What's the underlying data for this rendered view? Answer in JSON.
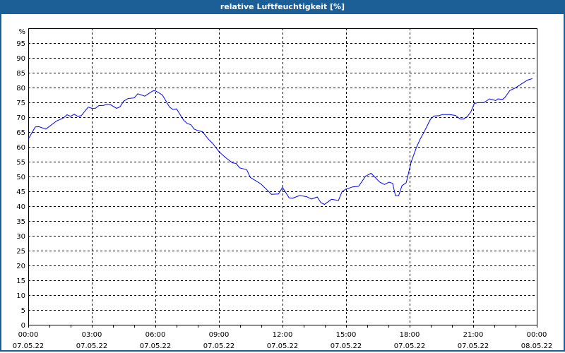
{
  "window": {
    "title": "relative Luftfeuchtigkeit [%]"
  },
  "chart_data": {
    "type": "line",
    "title": "relative Luftfeuchtigkeit [%]",
    "ylabel": "%",
    "xlabel": "",
    "ylim": [
      0,
      100
    ],
    "xlim_hours": [
      0,
      24
    ],
    "grid": true,
    "yticks": [
      "0",
      "5",
      "10",
      "15",
      "20",
      "25",
      "30",
      "35",
      "40",
      "45",
      "50",
      "55",
      "60",
      "65",
      "70",
      "75",
      "80",
      "85",
      "90",
      "95"
    ],
    "xticks": [
      {
        "time": "00:00",
        "date": "07.05.22"
      },
      {
        "time": "03:00",
        "date": "07.05.22"
      },
      {
        "time": "06:00",
        "date": "07.05.22"
      },
      {
        "time": "09:00",
        "date": "07.05.22"
      },
      {
        "time": "12:00",
        "date": "07.05.22"
      },
      {
        "time": "15:00",
        "date": "07.05.22"
      },
      {
        "time": "18:00",
        "date": "07.05.22"
      },
      {
        "time": "21:00",
        "date": "07.05.22"
      },
      {
        "time": "00:00",
        "date": "08.05.22"
      }
    ],
    "series": [
      {
        "name": "relative Luftfeuchtigkeit",
        "color": "#0000ff",
        "x_hours": [
          0,
          0.33,
          0.5,
          0.83,
          1.33,
          1.67,
          1.83,
          2,
          2.17,
          2.33,
          2.5,
          2.83,
          3,
          3.17,
          3.33,
          3.56,
          3.72,
          3.89,
          4.17,
          4.33,
          4.5,
          4.72,
          5,
          5.17,
          5.5,
          5.67,
          5.89,
          6,
          6.33,
          6.67,
          6.83,
          7,
          7.33,
          7.5,
          7.67,
          7.83,
          8,
          8.22,
          8.5,
          8.7,
          9,
          9.31,
          9.64,
          9.81,
          9.98,
          10.31,
          10.48,
          10.98,
          11.48,
          11.81,
          12,
          12.31,
          12.48,
          12.81,
          13.14,
          13.37,
          13.64,
          13.81,
          13.98,
          14.31,
          14.64,
          14.81,
          14.98,
          15.31,
          15.59,
          15.92,
          16.18,
          16.59,
          16.81,
          17.03,
          17.2,
          17.33,
          17.48,
          17.64,
          17.84,
          18.07,
          18.31,
          18.49,
          18.66,
          18.99,
          19.16,
          19.38,
          19.55,
          19.88,
          20.16,
          20.39,
          20.55,
          20.72,
          20.89,
          21.05,
          21.22,
          21.5,
          21.78,
          22.06,
          22.17,
          22.39,
          22.5,
          22.73,
          23,
          23.23,
          23.56,
          23.79
        ],
        "values": [
          62.6,
          66.7,
          66.8,
          66,
          68.7,
          69.8,
          70.8,
          70.3,
          71,
          70.3,
          70.5,
          73.4,
          73,
          73,
          73.9,
          74,
          74.4,
          74.2,
          73,
          73.5,
          75.4,
          76.3,
          76.5,
          77.9,
          77.1,
          77.9,
          78.9,
          78.9,
          77.5,
          73.4,
          72.6,
          72.8,
          69,
          67.9,
          67.5,
          66,
          65.5,
          65.1,
          62.6,
          61.2,
          58.4,
          56.4,
          54.6,
          54.4,
          52.9,
          52.3,
          49.7,
          47.5,
          44,
          44.1,
          46.3,
          42.8,
          42.7,
          43.6,
          43.2,
          42.4,
          43.1,
          41.2,
          40.6,
          42.3,
          41.9,
          44.9,
          45.7,
          46.5,
          46.7,
          50.1,
          51.1,
          48.1,
          47.3,
          48.1,
          47.7,
          43.5,
          43.5,
          46.9,
          47.9,
          54.8,
          59.6,
          62.5,
          64.7,
          69.4,
          70.4,
          70.5,
          70.9,
          70.9,
          70.6,
          69.4,
          69.4,
          70.2,
          71.8,
          74.6,
          74.9,
          74.9,
          76.2,
          75.6,
          76.2,
          76,
          76.7,
          79,
          79.9,
          81,
          82.5,
          83
        ]
      }
    ]
  }
}
